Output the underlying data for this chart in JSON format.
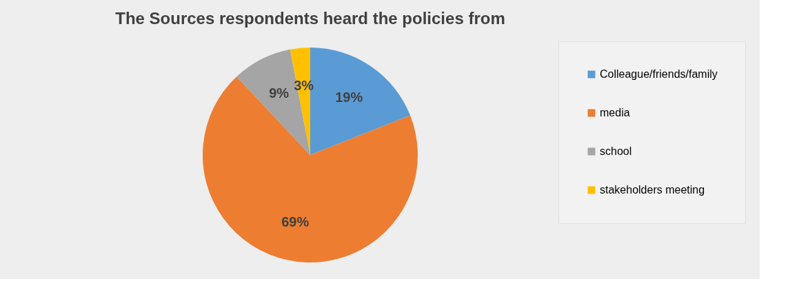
{
  "chart_data": {
    "type": "pie",
    "title": "The Sources respondents heard the policies from",
    "categories": [
      "Colleague/friends/family",
      "media",
      "school",
      "stakeholders meeting"
    ],
    "values": [
      19,
      69,
      9,
      3
    ],
    "colors": [
      "#5b9bd5",
      "#ed7d31",
      "#a5a5a5",
      "#ffc000"
    ],
    "value_labels": [
      "19%",
      "69%",
      "9%",
      "3%"
    ],
    "legend": "right"
  }
}
